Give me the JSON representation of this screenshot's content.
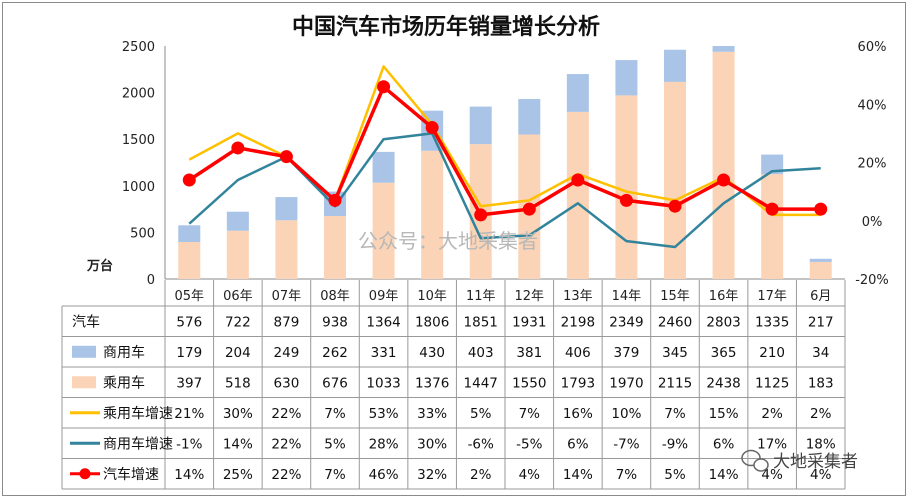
{
  "chart_data": {
    "type": "bar",
    "title": "中国汽车市场历年销量增长分析",
    "ylabel": "万台",
    "ylim": [
      0,
      2500
    ],
    "y_ticks": [
      0,
      500,
      1000,
      1500,
      2000,
      2500
    ],
    "y2lim": [
      -20,
      60
    ],
    "y2_ticks": [
      "-20%",
      "0%",
      "20%",
      "40%",
      "60%"
    ],
    "categories": [
      "05年",
      "06年",
      "07年",
      "08年",
      "09年",
      "10年",
      "11年",
      "12年",
      "13年",
      "14年",
      "15年",
      "16年",
      "17年",
      "6月"
    ],
    "stacked": true,
    "series": [
      {
        "name": "汽车",
        "kind": "table-only",
        "values": [
          576,
          722,
          879,
          938,
          1364,
          1806,
          1851,
          1931,
          2198,
          2349,
          2460,
          2803,
          1335,
          217
        ]
      },
      {
        "name": "商用车",
        "kind": "bar",
        "color": "#a9c4e6",
        "values": [
          179,
          204,
          249,
          262,
          331,
          430,
          403,
          381,
          406,
          379,
          345,
          365,
          210,
          34
        ]
      },
      {
        "name": "乘用车",
        "kind": "bar",
        "color": "#fbd3b6",
        "values": [
          397,
          518,
          630,
          676,
          1033,
          1376,
          1447,
          1550,
          1793,
          1970,
          2115,
          2438,
          1125,
          183
        ]
      },
      {
        "name": "乘用车增速",
        "kind": "line",
        "axis": "right",
        "color": "#ffc000",
        "values": [
          21,
          30,
          22,
          7,
          53,
          33,
          5,
          7,
          16,
          10,
          7,
          15,
          2,
          2
        ]
      },
      {
        "name": "商用车增速",
        "kind": "line",
        "axis": "right",
        "color": "#31849b",
        "values": [
          -1,
          14,
          22,
          5,
          28,
          30,
          -6,
          -5,
          6,
          -7,
          -9,
          6,
          17,
          18
        ]
      },
      {
        "name": "汽车增速",
        "kind": "line-marker",
        "axis": "right",
        "color": "#ff0000",
        "values": [
          14,
          25,
          22,
          7,
          46,
          32,
          2,
          4,
          14,
          7,
          5,
          14,
          4,
          4
        ]
      }
    ],
    "table_rows": [
      [
        "576",
        "722",
        "879",
        "938",
        "1364",
        "1806",
        "1851",
        "1931",
        "2198",
        "2349",
        "2460",
        "2803",
        "1335",
        "217"
      ],
      [
        "179",
        "204",
        "249",
        "262",
        "331",
        "430",
        "403",
        "381",
        "406",
        "379",
        "345",
        "365",
        "210",
        "34"
      ],
      [
        "397",
        "518",
        "630",
        "676",
        "1033",
        "1376",
        "1447",
        "1550",
        "1793",
        "1970",
        "2115",
        "2438",
        "1125",
        "183"
      ],
      [
        "21%",
        "30%",
        "22%",
        "7%",
        "53%",
        "33%",
        "5%",
        "7%",
        "16%",
        "10%",
        "7%",
        "15%",
        "2%",
        "2%"
      ],
      [
        "-1%",
        "14%",
        "22%",
        "5%",
        "28%",
        "30%",
        "-6%",
        "-5%",
        "6%",
        "-7%",
        "-9%",
        "6%",
        "17%",
        "18%"
      ],
      [
        "14%",
        "25%",
        "22%",
        "7%",
        "46%",
        "32%",
        "2%",
        "4%",
        "14%",
        "7%",
        "5%",
        "14%",
        "4%",
        "4%"
      ]
    ],
    "grid": false,
    "legend": "table-left"
  },
  "watermark": "公众号：大地采集者",
  "badge": "大地采集者"
}
